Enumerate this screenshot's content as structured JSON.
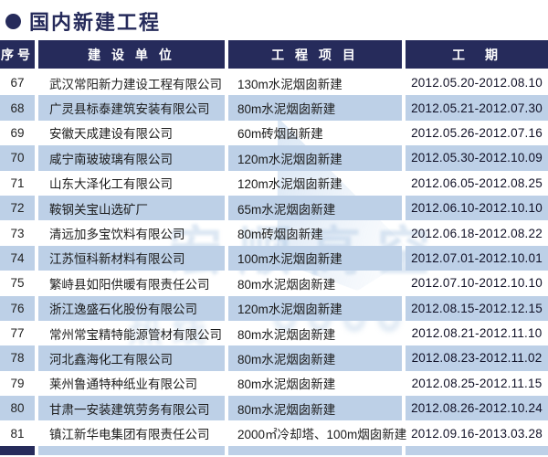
{
  "title": "国内新建工程",
  "table": {
    "headers": [
      "序号",
      "建 设 单 位",
      "工 程 项 目",
      "工　期"
    ],
    "rows": [
      {
        "no": "67",
        "company": "武汉常阳新力建设工程有限公司",
        "project": "130m水泥烟囱新建",
        "period": "2012.05.20-2012.08.10"
      },
      {
        "no": "68",
        "company": "广灵县标泰建筑安装有限公司",
        "project": "80m水泥烟囱新建",
        "period": "2012.05.21-2012.07.30"
      },
      {
        "no": "69",
        "company": "安徽天成建设有限公司",
        "project": "60m砖烟囱新建",
        "period": "2012.05.26-2012.07.16"
      },
      {
        "no": "70",
        "company": "咸宁南玻玻璃有限公司",
        "project": "120m水泥烟囱新建",
        "period": "2012.05.30-2012.10.09"
      },
      {
        "no": "71",
        "company": "山东大泽化工有限公司",
        "project": "120m水泥烟囱新建",
        "period": "2012.06.05-2012.08.25"
      },
      {
        "no": "72",
        "company": "鞍钢关宝山选矿厂",
        "project": "65m水泥烟囱新建",
        "period": "2012.06.10-2012.10.10"
      },
      {
        "no": "73",
        "company": "清远加多宝饮料有限公司",
        "project": "80m砖烟囱新建",
        "period": "2012.06.18-2012.08.22"
      },
      {
        "no": "74",
        "company": "江苏恒科新材料有限公司",
        "project": "100m水泥烟囱新建",
        "period": "2012.07.01-2012.10.01"
      },
      {
        "no": "75",
        "company": "繁峙县如阳供暖有限责任公司",
        "project": "80m水泥烟囱新建",
        "period": "2012.07.10-2012.10.10"
      },
      {
        "no": "76",
        "company": "浙江逸盛石化股份有限公司",
        "project": "120m水泥烟囱新建",
        "period": "2012.08.15-2012.12.15"
      },
      {
        "no": "77",
        "company": "常州常宝精特能源管材有限公司",
        "project": "80m水泥烟囱新建",
        "period": "2012.08.21-2012.11.10"
      },
      {
        "no": "78",
        "company": "河北鑫海化工有限公司",
        "project": "80m水泥烟囱新建",
        "period": "2012.08.23-2012.11.02"
      },
      {
        "no": "79",
        "company": "莱州鲁通特种纸业有限公司",
        "project": "80m水泥烟囱新建",
        "period": "2012.08.25-2012.11.15"
      },
      {
        "no": "80",
        "company": "甘肃一安装建筑劳务有限公司",
        "project": "80m水泥烟囱新建",
        "period": "2012.08.26-2012.10.24"
      },
      {
        "no": "81",
        "company": "镇江新华电集团有限责任公司",
        "project": "2000㎡冷却塔、100m烟囱新建",
        "period": "2012.09.16-2013.03.28"
      }
    ]
  },
  "watermark": {
    "brand": "宏顺高空",
    "hotline_label": "热线"
  },
  "colors": {
    "navy": "#262b5b",
    "stripe": "#bdd0e7"
  }
}
